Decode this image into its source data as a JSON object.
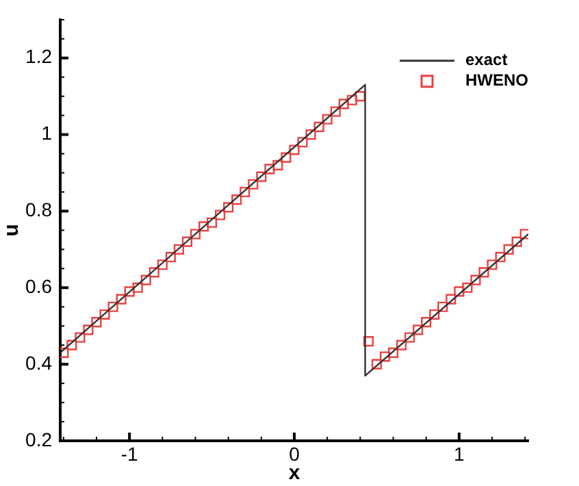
{
  "chart_data": {
    "type": "line",
    "xlabel": "x",
    "ylabel": "u",
    "xlim": [
      -1.42,
      1.42
    ],
    "ylim": [
      0.2,
      1.3
    ],
    "xticks": [
      {
        "value": -1.4,
        "label": null
      },
      {
        "value": -1.2,
        "label": null
      },
      -1,
      {
        "value": -0.8,
        "label": null
      },
      {
        "value": -0.6,
        "label": null
      },
      {
        "value": -0.4,
        "label": null
      },
      {
        "value": -0.2,
        "label": null
      },
      0,
      {
        "value": 0.2,
        "label": null
      },
      {
        "value": 0.4,
        "label": null
      },
      {
        "value": 0.6,
        "label": null
      },
      {
        "value": 0.8,
        "label": null
      },
      1,
      {
        "value": 1.2,
        "label": null
      },
      {
        "value": 1.4,
        "label": null
      }
    ],
    "yticks": [
      0.2,
      {
        "value": 0.25,
        "label": null
      },
      {
        "value": 0.3,
        "label": null
      },
      {
        "value": 0.35,
        "label": null
      },
      0.4,
      {
        "value": 0.45,
        "label": null
      },
      {
        "value": 0.5,
        "label": null
      },
      {
        "value": 0.55,
        "label": null
      },
      0.6,
      {
        "value": 0.65,
        "label": null
      },
      {
        "value": 0.7,
        "label": null
      },
      {
        "value": 0.75,
        "label": null
      },
      0.8,
      {
        "value": 0.85,
        "label": null
      },
      {
        "value": 0.9,
        "label": null
      },
      {
        "value": 0.95,
        "label": null
      },
      1,
      {
        "value": 1.05,
        "label": null
      },
      {
        "value": 1.1,
        "label": null
      },
      {
        "value": 1.15,
        "label": null
      },
      1.2,
      {
        "value": 1.25,
        "label": null
      },
      {
        "value": 1.3,
        "label": null
      }
    ],
    "grid": false,
    "legend": "top right",
    "series": [
      {
        "name": "exact",
        "type": "line",
        "color": "#333333",
        "line_style": "solid",
        "marker": "none",
        "x": [
          -1.42,
          0.43,
          0.43,
          1.42
        ],
        "values": [
          0.43,
          1.13,
          0.37,
          0.74
        ]
      },
      {
        "name": "HWENO",
        "type": "scatter",
        "color": "#e8423f",
        "marker": "square",
        "x": [
          -1.4,
          -1.35,
          -1.3,
          -1.25,
          -1.2,
          -1.15,
          -1.1,
          -1.05,
          -1.0,
          -0.95,
          -0.9,
          -0.85,
          -0.8,
          -0.75,
          -0.7,
          -0.65,
          -0.6,
          -0.55,
          -0.5,
          -0.45,
          -0.4,
          -0.35,
          -0.3,
          -0.25,
          -0.2,
          -0.15,
          -0.1,
          -0.05,
          0.0,
          0.05,
          0.1,
          0.15,
          0.2,
          0.25,
          0.3,
          0.35,
          0.4,
          0.45,
          0.5,
          0.55,
          0.6,
          0.65,
          0.7,
          0.75,
          0.8,
          0.85,
          0.9,
          0.95,
          1.0,
          1.05,
          1.1,
          1.15,
          1.2,
          1.25,
          1.3,
          1.35,
          1.4
        ],
        "values": [
          0.43,
          0.45,
          0.47,
          0.49,
          0.51,
          0.53,
          0.55,
          0.57,
          0.59,
          0.6,
          0.62,
          0.64,
          0.66,
          0.68,
          0.7,
          0.72,
          0.74,
          0.76,
          0.77,
          0.79,
          0.81,
          0.83,
          0.85,
          0.87,
          0.89,
          0.91,
          0.92,
          0.94,
          0.96,
          0.98,
          1.0,
          1.02,
          1.04,
          1.06,
          1.08,
          1.09,
          1.1,
          0.46,
          0.4,
          0.42,
          0.43,
          0.45,
          0.47,
          0.49,
          0.51,
          0.53,
          0.55,
          0.57,
          0.59,
          0.6,
          0.62,
          0.64,
          0.66,
          0.68,
          0.7,
          0.72,
          0.74
        ]
      }
    ]
  }
}
